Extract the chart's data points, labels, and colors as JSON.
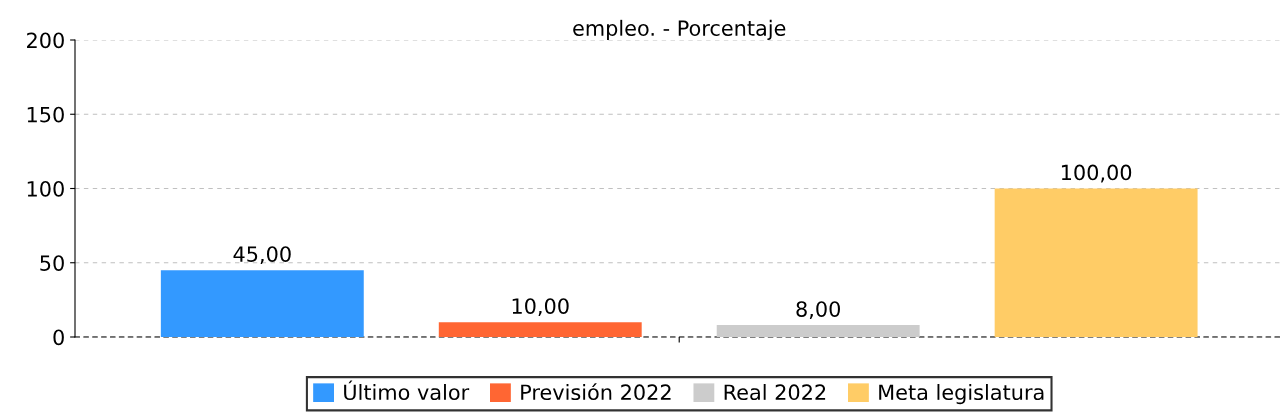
{
  "chart_data": {
    "type": "bar",
    "title": "empleo. - Porcentaje",
    "categories": [
      null
    ],
    "series": [
      {
        "name": "Último valor",
        "color": "#3399ff",
        "values": [
          45
        ],
        "value_labels": [
          "45,00"
        ]
      },
      {
        "name": "Previsión 2022",
        "color": "#ff6633",
        "values": [
          10
        ],
        "value_labels": [
          "10,00"
        ]
      },
      {
        "name": "Real 2022",
        "color": "#cccccc",
        "values": [
          8
        ],
        "value_labels": [
          "8,00"
        ]
      },
      {
        "name": "Meta legislatura",
        "color": "#ffcc66",
        "values": [
          100
        ],
        "value_labels": [
          "100,00"
        ]
      }
    ],
    "ylim": [
      0,
      200
    ],
    "yticks": [
      0,
      50,
      100,
      150,
      200
    ],
    "grid": "y",
    "legend": "bottom"
  }
}
